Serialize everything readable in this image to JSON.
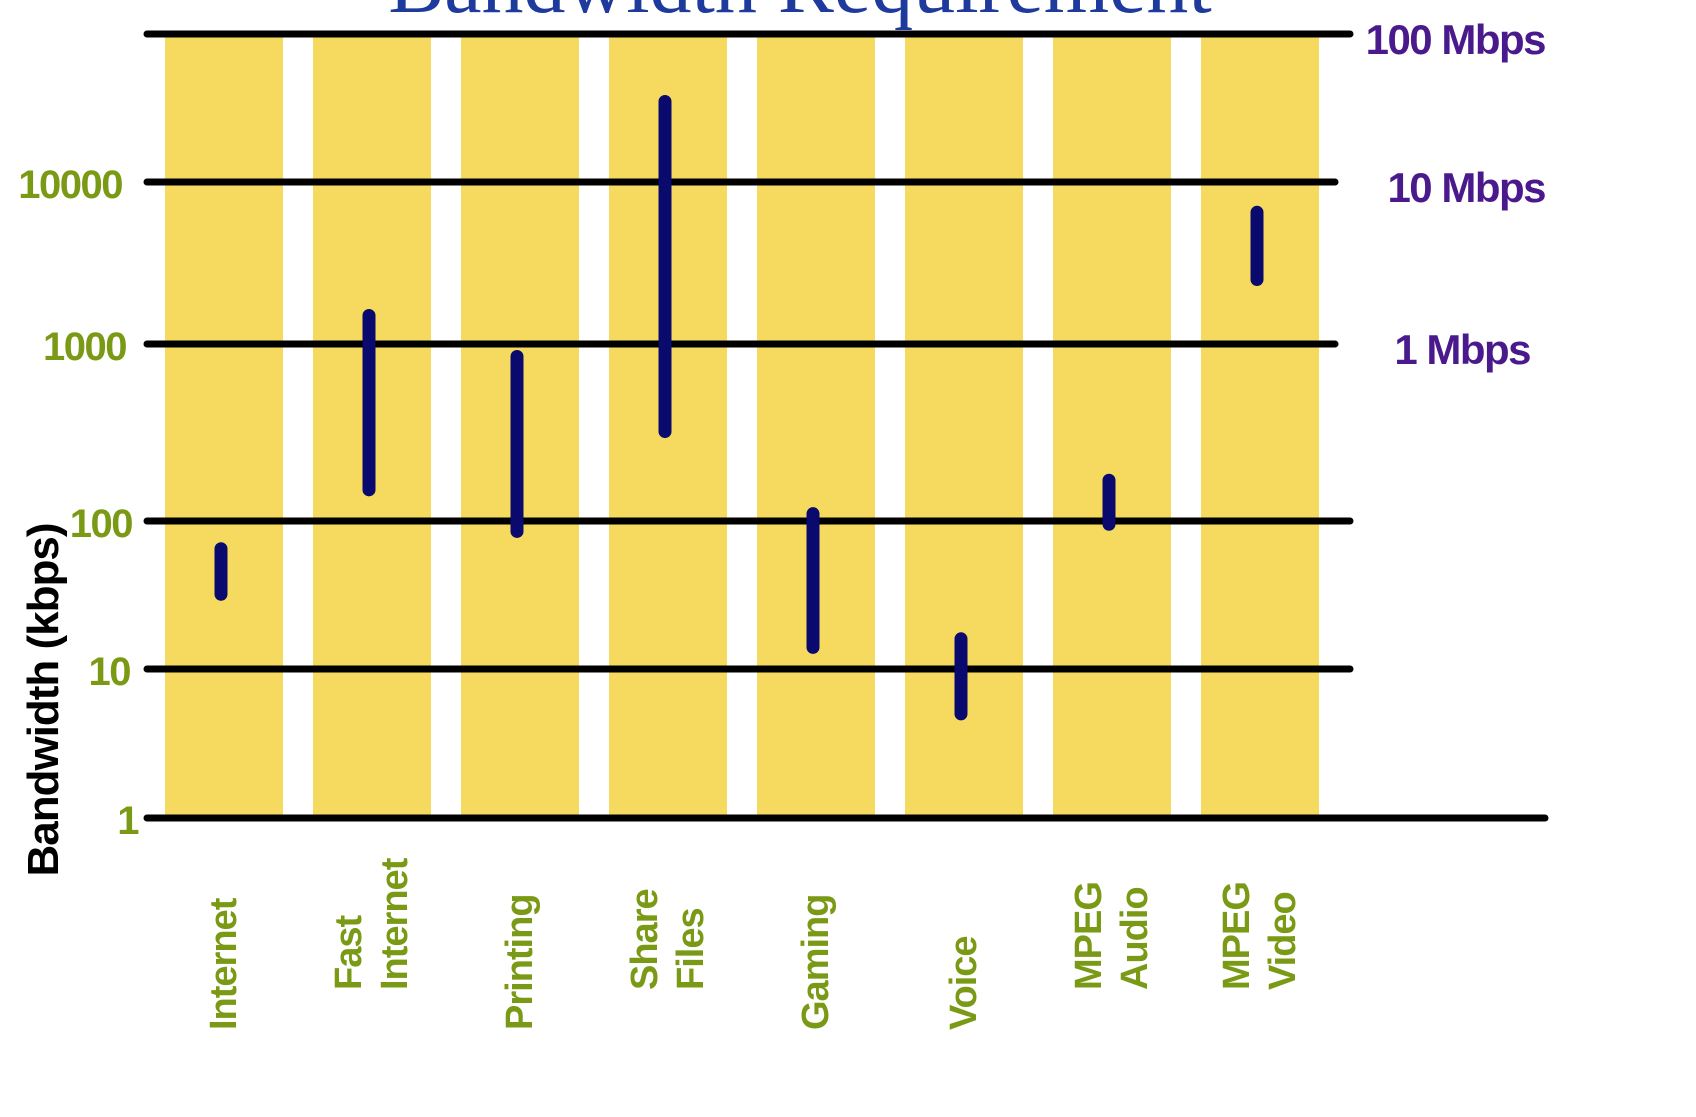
{
  "chart_data": {
    "type": "range-bar",
    "title": "Bandwidth Requirement",
    "ylabel": "Bandwidth (kbps)",
    "yscale": "log",
    "ylim": [
      1,
      100000
    ],
    "y_ticks_left": [
      {
        "value": 1,
        "label": "1"
      },
      {
        "value": 10,
        "label": "10"
      },
      {
        "value": 100,
        "label": "100"
      },
      {
        "value": 1000,
        "label": "1000"
      },
      {
        "value": 10000,
        "label": "10000"
      }
    ],
    "y_ticks_right": [
      {
        "value": 1000,
        "label": "1 Mbps"
      },
      {
        "value": 10000,
        "label": "10 Mbps"
      },
      {
        "value": 100000,
        "label": "100 Mbps"
      }
    ],
    "categories": [
      {
        "label": [
          "Internet"
        ],
        "low": 32,
        "high": 65
      },
      {
        "label": [
          "Fast",
          "Internet"
        ],
        "low": 150,
        "high": 1500
      },
      {
        "label": [
          "Printing"
        ],
        "low": 85,
        "high": 850
      },
      {
        "label": [
          "Share",
          "Files"
        ],
        "low": 320,
        "high": 35000
      },
      {
        "label": [
          "Gaming"
        ],
        "low": 14,
        "high": 110
      },
      {
        "label": [
          "Voice"
        ],
        "low": 5,
        "high": 16
      },
      {
        "label": [
          "MPEG",
          "Audio"
        ],
        "low": 95,
        "high": 170
      },
      {
        "label": [
          "MPEG",
          "Video"
        ],
        "low": 2500,
        "high": 6500
      }
    ],
    "colors": {
      "column": "#f5da5f",
      "range_bar": "#0a0a6e",
      "gridline": "#000000",
      "left_tick_text": "#7a9a16",
      "right_tick_text": "#4a1a8c",
      "category_text": "#7a9a16",
      "title": "#1e3a9c"
    },
    "grid": true
  }
}
